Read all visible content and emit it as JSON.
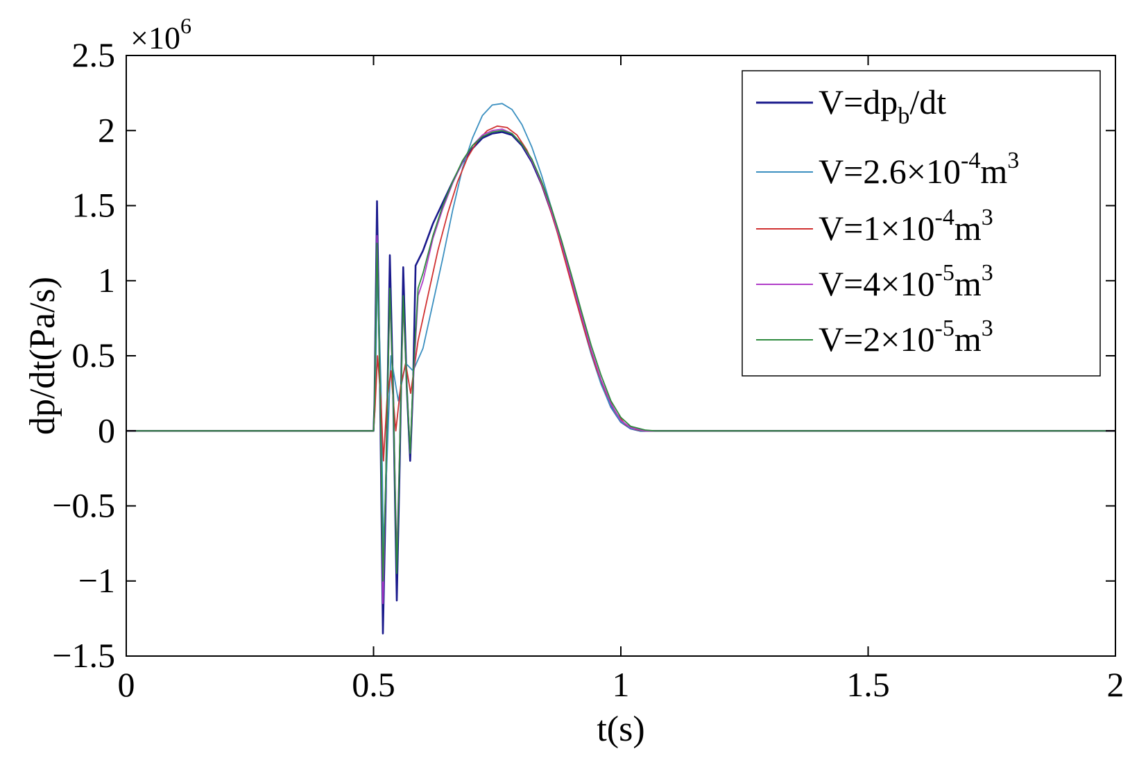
{
  "chart_data": {
    "type": "line",
    "title": "",
    "xlabel": "t(s)",
    "ylabel": "dp/dt(Pa/s)",
    "xlim": [
      0,
      2
    ],
    "ylim": [
      -1.5,
      2.5
    ],
    "y_multiplier": "×10^6",
    "y_multiplier_parts": {
      "base": "×10",
      "exp": "6"
    },
    "grid": false,
    "legend_position": "top-right",
    "xticks": [
      0,
      0.5,
      1,
      1.5,
      2
    ],
    "xtick_labels": [
      "0",
      "0.5",
      "1",
      "1.5",
      "2"
    ],
    "yticks": [
      -1.5,
      -1,
      -0.5,
      0,
      0.5,
      1,
      1.5,
      2,
      2.5
    ],
    "ytick_labels": [
      "−1.5",
      "−1",
      "−0.5",
      "0",
      "0.5",
      "1",
      "1.5",
      "2",
      "2.5"
    ],
    "legend": [
      {
        "label": "V=dp_b/dt",
        "parts": [
          {
            "t": "V=dp"
          },
          {
            "t": "b",
            "sub": true
          },
          {
            "t": "/dt"
          }
        ]
      },
      {
        "label": "V=2.6×10^-4 m^3",
        "parts": [
          {
            "t": "V=2.6×10"
          },
          {
            "t": "-4",
            "sup": true
          },
          {
            "t": "m"
          },
          {
            "t": "3",
            "sup": true
          }
        ]
      },
      {
        "label": "V=1×10^-4 m^3",
        "parts": [
          {
            "t": "V=1×10"
          },
          {
            "t": "-4",
            "sup": true
          },
          {
            "t": "m"
          },
          {
            "t": "3",
            "sup": true
          }
        ]
      },
      {
        "label": "V=4×10^-5 m^3",
        "parts": [
          {
            "t": "V=4×10"
          },
          {
            "t": "-5",
            "sup": true
          },
          {
            "t": "m"
          },
          {
            "t": "3",
            "sup": true
          }
        ]
      },
      {
        "label": "V=2×10^-5 m^3",
        "parts": [
          {
            "t": "V=2×10"
          },
          {
            "t": "-5",
            "sup": true
          },
          {
            "t": "m"
          },
          {
            "t": "3",
            "sup": true
          }
        ]
      }
    ],
    "series": [
      {
        "name": "V=dp_b/dt",
        "color": "#1a1a8c",
        "points": [
          [
            0,
            0
          ],
          [
            0.5,
            0
          ],
          [
            0.502,
            0.2
          ],
          [
            0.507,
            1.53
          ],
          [
            0.513,
            0.3
          ],
          [
            0.519,
            -1.35
          ],
          [
            0.525,
            -0.4
          ],
          [
            0.533,
            1.17
          ],
          [
            0.54,
            0.2
          ],
          [
            0.547,
            -1.13
          ],
          [
            0.553,
            -0.2
          ],
          [
            0.56,
            1.09
          ],
          [
            0.567,
            0.3
          ],
          [
            0.574,
            -0.2
          ],
          [
            0.58,
            0.3
          ],
          [
            0.585,
            1.1
          ],
          [
            0.6,
            1.2
          ],
          [
            0.62,
            1.38
          ],
          [
            0.64,
            1.52
          ],
          [
            0.66,
            1.66
          ],
          [
            0.68,
            1.79
          ],
          [
            0.7,
            1.88
          ],
          [
            0.72,
            1.95
          ],
          [
            0.74,
            1.98
          ],
          [
            0.76,
            1.99
          ],
          [
            0.78,
            1.97
          ],
          [
            0.8,
            1.9
          ],
          [
            0.82,
            1.79
          ],
          [
            0.84,
            1.64
          ],
          [
            0.86,
            1.45
          ],
          [
            0.88,
            1.24
          ],
          [
            0.9,
            1.0
          ],
          [
            0.92,
            0.76
          ],
          [
            0.94,
            0.52
          ],
          [
            0.96,
            0.32
          ],
          [
            0.98,
            0.16
          ],
          [
            1.0,
            0.06
          ],
          [
            1.02,
            0.015
          ],
          [
            1.04,
            0
          ],
          [
            2,
            0
          ]
        ]
      },
      {
        "name": "V=2.6×10^-4 m^3",
        "color": "#3a8fc0",
        "points": [
          [
            0,
            0
          ],
          [
            0.5,
            0
          ],
          [
            0.503,
            0.15
          ],
          [
            0.508,
            1.1
          ],
          [
            0.515,
            0.3
          ],
          [
            0.52,
            -0.8
          ],
          [
            0.527,
            -0.2
          ],
          [
            0.535,
            0.5
          ],
          [
            0.55,
            0.2
          ],
          [
            0.565,
            0.45
          ],
          [
            0.58,
            0.4
          ],
          [
            0.6,
            0.55
          ],
          [
            0.62,
            0.85
          ],
          [
            0.64,
            1.15
          ],
          [
            0.66,
            1.47
          ],
          [
            0.68,
            1.75
          ],
          [
            0.7,
            1.95
          ],
          [
            0.72,
            2.1
          ],
          [
            0.74,
            2.17
          ],
          [
            0.76,
            2.18
          ],
          [
            0.78,
            2.14
          ],
          [
            0.8,
            2.04
          ],
          [
            0.82,
            1.89
          ],
          [
            0.84,
            1.7
          ],
          [
            0.86,
            1.48
          ],
          [
            0.88,
            1.24
          ],
          [
            0.9,
            0.99
          ],
          [
            0.92,
            0.74
          ],
          [
            0.94,
            0.51
          ],
          [
            0.96,
            0.31
          ],
          [
            0.98,
            0.16
          ],
          [
            1.0,
            0.06
          ],
          [
            1.02,
            0.015
          ],
          [
            1.04,
            0
          ],
          [
            2,
            0
          ]
        ]
      },
      {
        "name": "V=1×10^-4 m^3",
        "color": "#d03030",
        "points": [
          [
            0,
            0
          ],
          [
            0.5,
            0
          ],
          [
            0.503,
            0.15
          ],
          [
            0.508,
            0.5
          ],
          [
            0.515,
            0.2
          ],
          [
            0.52,
            -0.2
          ],
          [
            0.527,
            0.2
          ],
          [
            0.535,
            0.4
          ],
          [
            0.545,
            0.0
          ],
          [
            0.555,
            0.3
          ],
          [
            0.565,
            0.45
          ],
          [
            0.575,
            0.25
          ],
          [
            0.59,
            0.6
          ],
          [
            0.61,
            0.9
          ],
          [
            0.63,
            1.2
          ],
          [
            0.65,
            1.45
          ],
          [
            0.67,
            1.66
          ],
          [
            0.69,
            1.82
          ],
          [
            0.71,
            1.93
          ],
          [
            0.73,
            2.0
          ],
          [
            0.75,
            2.03
          ],
          [
            0.77,
            2.02
          ],
          [
            0.79,
            1.97
          ],
          [
            0.81,
            1.87
          ],
          [
            0.83,
            1.73
          ],
          [
            0.85,
            1.55
          ],
          [
            0.87,
            1.34
          ],
          [
            0.89,
            1.1
          ],
          [
            0.91,
            0.86
          ],
          [
            0.93,
            0.63
          ],
          [
            0.95,
            0.42
          ],
          [
            0.97,
            0.25
          ],
          [
            0.99,
            0.12
          ],
          [
            1.01,
            0.04
          ],
          [
            1.03,
            0.01
          ],
          [
            1.05,
            0
          ],
          [
            2,
            0
          ]
        ]
      },
      {
        "name": "V=4×10^-5 m^3",
        "color": "#b03cc8",
        "points": [
          [
            0,
            0
          ],
          [
            0.5,
            0
          ],
          [
            0.502,
            0.2
          ],
          [
            0.507,
            1.3
          ],
          [
            0.513,
            0.3
          ],
          [
            0.519,
            -1.15
          ],
          [
            0.525,
            -0.3
          ],
          [
            0.533,
            0.9
          ],
          [
            0.54,
            0.2
          ],
          [
            0.547,
            -0.85
          ],
          [
            0.553,
            -0.1
          ],
          [
            0.56,
            0.85
          ],
          [
            0.567,
            0.3
          ],
          [
            0.574,
            -0.15
          ],
          [
            0.58,
            0.3
          ],
          [
            0.59,
            0.9
          ],
          [
            0.6,
            1.0
          ],
          [
            0.62,
            1.28
          ],
          [
            0.64,
            1.48
          ],
          [
            0.66,
            1.65
          ],
          [
            0.68,
            1.79
          ],
          [
            0.7,
            1.9
          ],
          [
            0.72,
            1.97
          ],
          [
            0.74,
            2.0
          ],
          [
            0.76,
            2.01
          ],
          [
            0.78,
            1.98
          ],
          [
            0.8,
            1.91
          ],
          [
            0.82,
            1.8
          ],
          [
            0.84,
            1.65
          ],
          [
            0.86,
            1.46
          ],
          [
            0.88,
            1.25
          ],
          [
            0.9,
            1.01
          ],
          [
            0.92,
            0.77
          ],
          [
            0.94,
            0.54
          ],
          [
            0.96,
            0.34
          ],
          [
            0.98,
            0.18
          ],
          [
            1.0,
            0.07
          ],
          [
            1.02,
            0.02
          ],
          [
            1.05,
            0
          ],
          [
            2,
            0
          ]
        ]
      },
      {
        "name": "V=2×10^-5 m^3",
        "color": "#2e8b3e",
        "points": [
          [
            0,
            0
          ],
          [
            0.5,
            0
          ],
          [
            0.502,
            0.2
          ],
          [
            0.507,
            1.25
          ],
          [
            0.513,
            0.3
          ],
          [
            0.519,
            -1.0
          ],
          [
            0.525,
            -0.3
          ],
          [
            0.533,
            0.95
          ],
          [
            0.54,
            0.2
          ],
          [
            0.547,
            -0.95
          ],
          [
            0.553,
            -0.1
          ],
          [
            0.56,
            0.9
          ],
          [
            0.567,
            0.3
          ],
          [
            0.574,
            -0.15
          ],
          [
            0.58,
            0.35
          ],
          [
            0.59,
            0.95
          ],
          [
            0.6,
            1.05
          ],
          [
            0.62,
            1.3
          ],
          [
            0.64,
            1.5
          ],
          [
            0.66,
            1.66
          ],
          [
            0.68,
            1.8
          ],
          [
            0.7,
            1.9
          ],
          [
            0.72,
            1.96
          ],
          [
            0.74,
            1.99
          ],
          [
            0.76,
            2.0
          ],
          [
            0.78,
            1.98
          ],
          [
            0.8,
            1.91
          ],
          [
            0.82,
            1.81
          ],
          [
            0.84,
            1.66
          ],
          [
            0.86,
            1.48
          ],
          [
            0.88,
            1.27
          ],
          [
            0.9,
            1.04
          ],
          [
            0.92,
            0.8
          ],
          [
            0.94,
            0.57
          ],
          [
            0.96,
            0.37
          ],
          [
            0.98,
            0.2
          ],
          [
            1.0,
            0.09
          ],
          [
            1.02,
            0.03
          ],
          [
            1.05,
            0.005
          ],
          [
            1.07,
            0
          ],
          [
            2,
            0
          ]
        ]
      }
    ]
  }
}
